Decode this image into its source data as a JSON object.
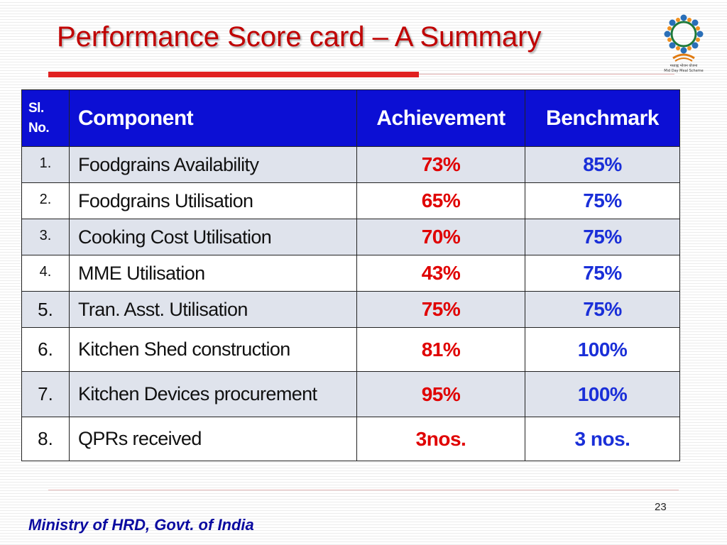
{
  "slide": {
    "title": "Performance Score card – A Summary",
    "page_number": "23",
    "footer_text": "Ministry of HRD, Govt. of India"
  },
  "logo": {
    "icon": "mid-day-meal-logo",
    "caption_line1": "मध्याह्न भोजन योजना",
    "caption_line2": "Mid Day Meal Scheme"
  },
  "table": {
    "headers": {
      "sl_line1": "Sl.",
      "sl_line2": "No.",
      "component": "Component",
      "achievement": "Achievement",
      "benchmark": "Benchmark"
    },
    "rows": [
      {
        "sl": "1.",
        "component": "Foodgrains Availability",
        "achievement": "73%",
        "benchmark": "85%"
      },
      {
        "sl": "2.",
        "component": "Foodgrains Utilisation",
        "achievement": "65%",
        "benchmark": "75%"
      },
      {
        "sl": "3.",
        "component": "Cooking Cost Utilisation",
        "achievement": "70%",
        "benchmark": "75%"
      },
      {
        "sl": "4.",
        "component": "MME Utilisation",
        "achievement": "43%",
        "benchmark": "75%"
      },
      {
        "sl": "5.",
        "component": "Tran. Asst. Utilisation",
        "achievement": "75%",
        "benchmark": "75%"
      },
      {
        "sl": "6.",
        "component": "Kitchen Shed construction",
        "achievement": "81%",
        "benchmark": "100%"
      },
      {
        "sl": "7.",
        "component": "Kitchen Devices procurement",
        "achievement": "95%",
        "benchmark": "100%"
      },
      {
        "sl": "8.",
        "component": "QPRs received",
        "achievement": "3nos.",
        "benchmark": "3 nos."
      }
    ]
  },
  "colors": {
    "title": "#c00000",
    "header_background": "#0c0fd4",
    "achievement_text": "#e00000",
    "benchmark_text": "#1a2fd8",
    "footer_text": "#0a0aa0"
  }
}
